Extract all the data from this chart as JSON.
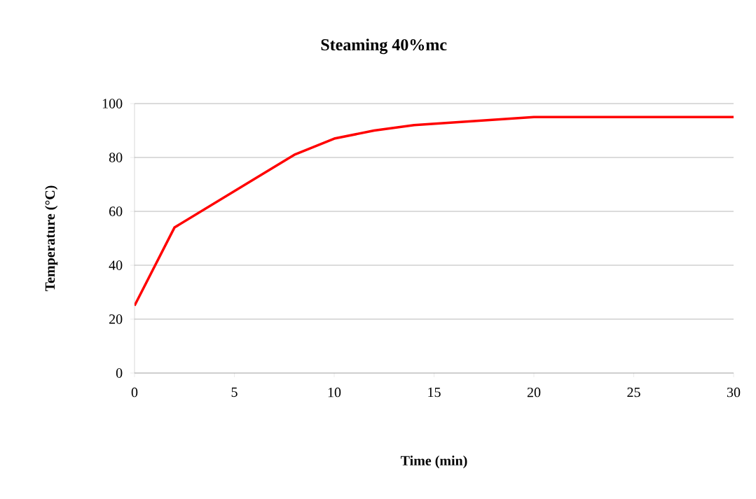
{
  "chart_data": {
    "type": "line",
    "title": "Steaming 40%mc",
    "xlabel": "Time (min)",
    "ylabel": "Temperature (°C)",
    "x": [
      0,
      2,
      8,
      10,
      12,
      14,
      20,
      30
    ],
    "series": [
      {
        "color": "#ff0000",
        "values": [
          25,
          54,
          81,
          87,
          90,
          92,
          95,
          95
        ]
      }
    ],
    "xlim": [
      0,
      30
    ],
    "xticks": [
      0,
      5,
      10,
      15,
      20,
      25,
      30
    ],
    "ylim": [
      0,
      100
    ],
    "yticks": [
      0,
      20,
      40,
      60,
      80,
      100
    ],
    "grid": "y",
    "marker": "none",
    "line_style": "solid"
  }
}
